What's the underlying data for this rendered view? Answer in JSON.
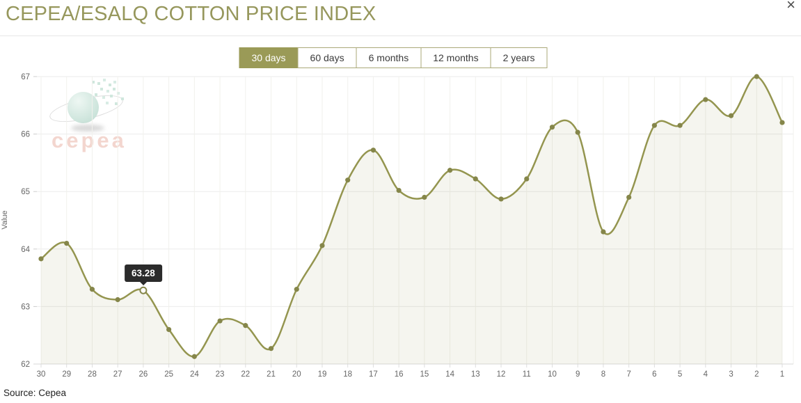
{
  "page": {
    "title": "CEPEA/ESALQ COTTON PRICE INDEX",
    "close_label": "×",
    "source": "Source: Cepea",
    "watermark": "cepea"
  },
  "tabs": [
    {
      "label": "30 days",
      "active": true
    },
    {
      "label": "60 days",
      "active": false
    },
    {
      "label": "6 months",
      "active": false
    },
    {
      "label": "12 months",
      "active": false
    },
    {
      "label": "2 years",
      "active": false
    }
  ],
  "tooltip": {
    "value": "63.28",
    "x_label": "26"
  },
  "colors": {
    "accent_olive": "#96975c",
    "tab_active_bg": "#9a9a57",
    "line": "#94954f",
    "marker": "#85864a",
    "area_fill": "rgba(148,149,79,0.09)",
    "tooltip_bg": "#2b2b2b",
    "grid_horizontal": "#ebebeb",
    "grid_vertical": "#f1f1ec",
    "axis_text": "#666666"
  },
  "chart_data": {
    "type": "area",
    "title": "CEPEA/ESALQ COTTON PRICE INDEX",
    "x_labels": [
      "30",
      "29",
      "28",
      "27",
      "26",
      "25",
      "24",
      "23",
      "22",
      "21",
      "20",
      "19",
      "18",
      "17",
      "16",
      "15",
      "14",
      "13",
      "12",
      "11",
      "10",
      "9",
      "8",
      "7",
      "6",
      "5",
      "4",
      "3",
      "2",
      "1"
    ],
    "values": [
      63.83,
      64.1,
      63.3,
      63.12,
      63.28,
      62.6,
      62.13,
      62.75,
      62.67,
      62.27,
      63.3,
      64.06,
      65.2,
      65.72,
      65.02,
      64.9,
      65.37,
      65.22,
      64.87,
      65.22,
      66.12,
      66.03,
      64.3,
      64.9,
      66.15,
      66.15,
      66.6,
      66.32,
      67.0,
      66.2
    ],
    "highlight_x_label": "26",
    "xlabel": "",
    "ylabel": "Value",
    "ylim": [
      62,
      67
    ],
    "y_ticks": [
      62,
      63,
      64,
      65,
      66,
      67
    ],
    "grid": true,
    "legend": "none"
  }
}
